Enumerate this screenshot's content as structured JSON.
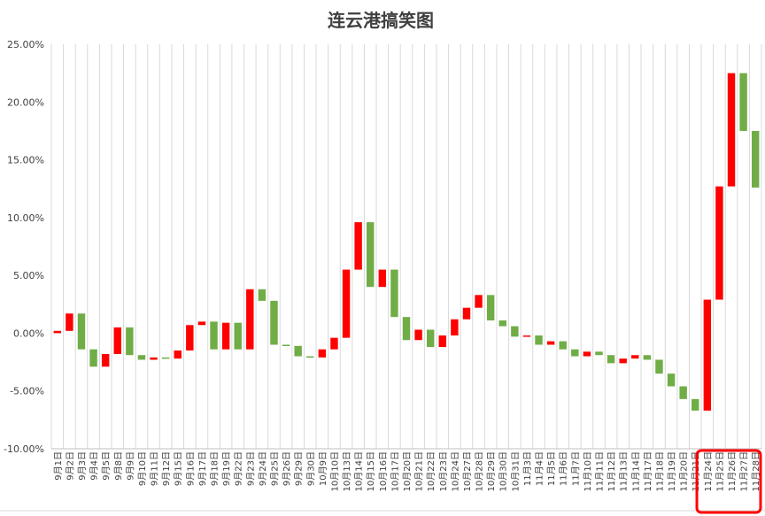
{
  "chart_data": {
    "type": "waterfall",
    "title": "连云港搞笑图",
    "xlabel": "",
    "ylabel": "",
    "ylim": [
      -0.1,
      0.25
    ],
    "yticks": [
      {
        "value": 0.25,
        "label": "25.00%"
      },
      {
        "value": 0.2,
        "label": "20.00%"
      },
      {
        "value": 0.15,
        "label": "15.00%"
      },
      {
        "value": 0.1,
        "label": "10.00%"
      },
      {
        "value": 0.05,
        "label": "5.00%"
      },
      {
        "value": 0.0,
        "label": "0.00%"
      },
      {
        "value": -0.05,
        "label": "-5.00%"
      },
      {
        "value": -0.1,
        "label": "-10.00%"
      }
    ],
    "grid": "vertical",
    "legend": "none",
    "colors": {
      "up": "#ff0000",
      "down": "#70ad47",
      "grid": "#d9d9d9",
      "axis": "#bfbfbf",
      "highlight": "#ff0000",
      "text": "#404040"
    },
    "highlight_box": {
      "label": "11月24日 – 11月28日",
      "categories": [
        "11月24日",
        "11月25日",
        "11月26日",
        "11月27日",
        "11月28日"
      ]
    },
    "bars": [
      {
        "category": "9月1日",
        "from": 0.0,
        "to": 0.002
      },
      {
        "category": "9月2日",
        "from": 0.002,
        "to": 0.017
      },
      {
        "category": "9月3日",
        "from": 0.017,
        "to": -0.014
      },
      {
        "category": "9月4日",
        "from": -0.014,
        "to": -0.029
      },
      {
        "category": "9月5日",
        "from": -0.029,
        "to": -0.018
      },
      {
        "category": "9月8日",
        "from": -0.018,
        "to": 0.005
      },
      {
        "category": "9月9日",
        "from": 0.005,
        "to": -0.019
      },
      {
        "category": "9月10日",
        "from": -0.019,
        "to": -0.023
      },
      {
        "category": "9月11日",
        "from": -0.023,
        "to": -0.021
      },
      {
        "category": "9月12日",
        "from": -0.021,
        "to": -0.022
      },
      {
        "category": "9月15日",
        "from": -0.022,
        "to": -0.015
      },
      {
        "category": "9月16日",
        "from": -0.015,
        "to": 0.007
      },
      {
        "category": "9月17日",
        "from": 0.007,
        "to": 0.01
      },
      {
        "category": "9月18日",
        "from": 0.01,
        "to": -0.014
      },
      {
        "category": "9月19日",
        "from": -0.014,
        "to": 0.009
      },
      {
        "category": "9月22日",
        "from": 0.009,
        "to": -0.014
      },
      {
        "category": "9月23日",
        "from": -0.014,
        "to": 0.038
      },
      {
        "category": "9月24日",
        "from": 0.038,
        "to": 0.028
      },
      {
        "category": "9月25日",
        "from": 0.028,
        "to": -0.01
      },
      {
        "category": "9月26日",
        "from": -0.01,
        "to": -0.011
      },
      {
        "category": "9月29日",
        "from": -0.011,
        "to": -0.02
      },
      {
        "category": "9月30日",
        "from": -0.02,
        "to": -0.021
      },
      {
        "category": "10月9日",
        "from": -0.021,
        "to": -0.014
      },
      {
        "category": "10月10日",
        "from": -0.014,
        "to": -0.004
      },
      {
        "category": "10月13日",
        "from": -0.004,
        "to": 0.055
      },
      {
        "category": "10月14日",
        "from": 0.055,
        "to": 0.096
      },
      {
        "category": "10月15日",
        "from": 0.096,
        "to": 0.04
      },
      {
        "category": "10月16日",
        "from": 0.04,
        "to": 0.055
      },
      {
        "category": "10月17日",
        "from": 0.055,
        "to": 0.014
      },
      {
        "category": "10月20日",
        "from": 0.014,
        "to": -0.006
      },
      {
        "category": "10月21日",
        "from": -0.006,
        "to": 0.003
      },
      {
        "category": "10月22日",
        "from": 0.003,
        "to": -0.012
      },
      {
        "category": "10月23日",
        "from": -0.012,
        "to": -0.002
      },
      {
        "category": "10月24日",
        "from": -0.002,
        "to": 0.012
      },
      {
        "category": "10月27日",
        "from": 0.012,
        "to": 0.022
      },
      {
        "category": "10月28日",
        "from": 0.022,
        "to": 0.033
      },
      {
        "category": "10月29日",
        "from": 0.033,
        "to": 0.011
      },
      {
        "category": "10月30日",
        "from": 0.011,
        "to": 0.006
      },
      {
        "category": "10月31日",
        "from": 0.006,
        "to": -0.003
      },
      {
        "category": "11月3日",
        "from": -0.003,
        "to": -0.002
      },
      {
        "category": "11月4日",
        "from": -0.002,
        "to": -0.01
      },
      {
        "category": "11月5日",
        "from": -0.01,
        "to": -0.007
      },
      {
        "category": "11月6日",
        "from": -0.007,
        "to": -0.014
      },
      {
        "category": "11月7日",
        "from": -0.014,
        "to": -0.02
      },
      {
        "category": "11月10日",
        "from": -0.02,
        "to": -0.016
      },
      {
        "category": "11月11日",
        "from": -0.016,
        "to": -0.019
      },
      {
        "category": "11月12日",
        "from": -0.019,
        "to": -0.026
      },
      {
        "category": "11月13日",
        "from": -0.026,
        "to": -0.022
      },
      {
        "category": "11月14日",
        "from": -0.022,
        "to": -0.019
      },
      {
        "category": "11月17日",
        "from": -0.019,
        "to": -0.023
      },
      {
        "category": "11月18日",
        "from": -0.023,
        "to": -0.035
      },
      {
        "category": "11月19日",
        "from": -0.035,
        "to": -0.046
      },
      {
        "category": "11月20日",
        "from": -0.046,
        "to": -0.057
      },
      {
        "category": "11月21日",
        "from": -0.057,
        "to": -0.067
      },
      {
        "category": "11月24日",
        "from": -0.067,
        "to": 0.029
      },
      {
        "category": "11月25日",
        "from": 0.029,
        "to": 0.127
      },
      {
        "category": "11月26日",
        "from": 0.127,
        "to": 0.225
      },
      {
        "category": "11月27日",
        "from": 0.225,
        "to": 0.175
      },
      {
        "category": "11月28日",
        "from": 0.175,
        "to": 0.126
      }
    ]
  }
}
